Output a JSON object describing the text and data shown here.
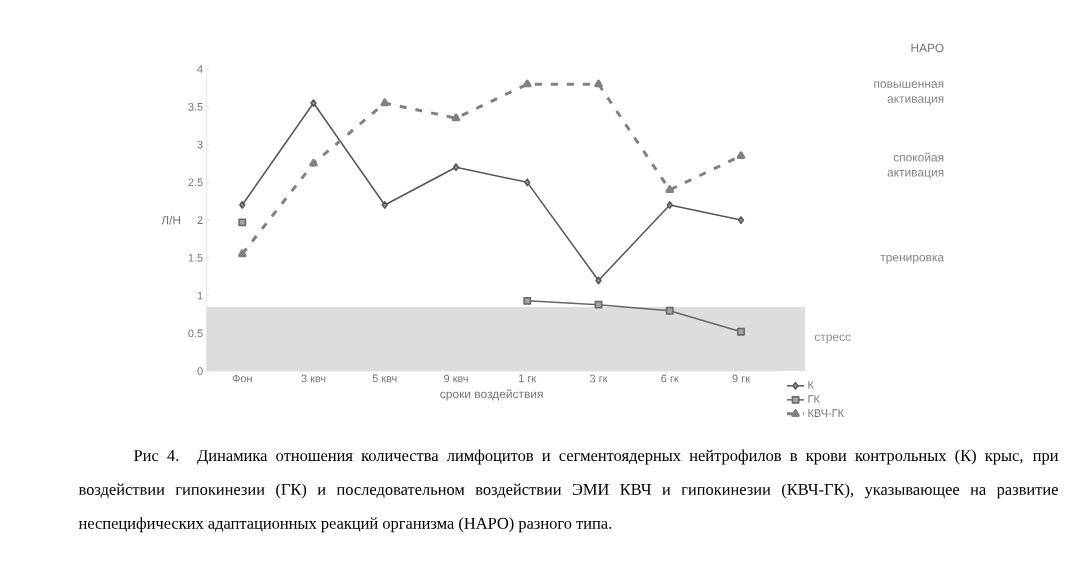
{
  "chart_data": {
    "type": "line",
    "xlabel": "сроки воздействия",
    "ylabel": "Л/Н",
    "categories": [
      "Фон",
      "3 квч",
      "5 квч",
      "9 квч",
      "1 гк",
      "3 гк",
      "6 гк",
      "9 гк"
    ],
    "series": [
      {
        "name": "К",
        "color": "#555555",
        "marker": "diamond",
        "line_style": "solid",
        "values": [
          2.2,
          3.55,
          2.2,
          2.7,
          2.5,
          1.2,
          2.2,
          2.0
        ]
      },
      {
        "name": "ГК",
        "color": "#666666",
        "marker": "square",
        "line_style": "solid",
        "values": [
          1.97,
          null,
          null,
          null,
          0.93,
          0.88,
          0.8,
          0.52
        ]
      },
      {
        "name": "КВЧ-ГК",
        "color": "#808080",
        "marker": "triangle",
        "line_style": "dashed",
        "values": [
          1.55,
          2.75,
          3.55,
          3.35,
          3.8,
          3.8,
          2.4,
          2.85
        ]
      }
    ],
    "ylim": [
      0,
      4
    ],
    "yticks": [
      0,
      0.5,
      1,
      1.5,
      2,
      2.5,
      3,
      3.5,
      4
    ],
    "bands": [
      {
        "axis": "y",
        "from": 0,
        "to": 0.85,
        "label": "стресс",
        "color": "#dddddd"
      }
    ],
    "legend": "bottom right",
    "annotations": [
      "НАРО",
      "повышенная активация",
      "спокойая активация",
      "тренировка",
      "Рис 4. Динамика отношения количества лимфоцитов и сегментоядерных нейтрофилов в крови контрольных (К) крыс, при воздействии гипокинезии (ГК) и последовательном воздействии ЭМИ КВЧ и гипокинезии (КВЧ-ГК), указывающее на развитие неспецифических адаптационных реакций организма (НАРО) разного типа."
    ]
  }
}
